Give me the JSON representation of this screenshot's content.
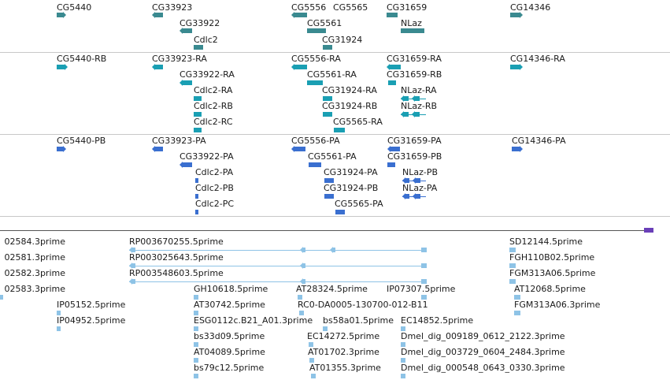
{
  "tracks": {
    "genes": {
      "labels": [
        "CG5440",
        "CG33923",
        "CG33922",
        "Cdlc2",
        "CG5556",
        "CG5565",
        "CG5561",
        "CG31924",
        "CG31659",
        "NLaz",
        "CG14346"
      ]
    },
    "transcripts": {
      "labels": [
        "CG5440-RB",
        "CG33923-RA",
        "CG33922-RA",
        "Cdlc2-RA",
        "Cdlc2-RB",
        "Cdlc2-RC",
        "CG5556-RA",
        "CG5561-RA",
        "CG31924-RA",
        "CG31924-RB",
        "CG5565-RA",
        "CG31659-RA",
        "CG31659-RB",
        "NLaz-RA",
        "NLaz-RB",
        "CG14346-RA"
      ]
    },
    "proteins": {
      "labels": [
        "CG5440-PB",
        "CG33923-PA",
        "CG33922-PA",
        "Cdlc2-PA",
        "Cdlc2-PB",
        "Cdlc2-PC",
        "CG5556-PA",
        "CG5561-PA",
        "CG31924-PA",
        "CG31924-PB",
        "CG5565-PA",
        "CG31659-PA",
        "CG31659-PB",
        "NLaz-PB",
        "NLaz-PA",
        "CG14346-PA"
      ]
    },
    "ests": {
      "labels": [
        "02584.3prime",
        "02581.3prime",
        "02582.3prime",
        "02583.3prime",
        "IP05152.5prime",
        "IP04952.5prime",
        "RP003670255.5prime",
        "RP003025643.5prime",
        "RP003548603.5prime",
        "GH10618.5prime",
        "AT30742.5prime",
        "ESG0112c.B21_A01.3prime",
        "bs33d09.5prime",
        "AT04089.5prime",
        "bs79c12.5prime",
        "AT28324.5prime",
        "RC0-DA0005-130700-012-B11",
        "bs58a01.5prime",
        "EC14272.5prime",
        "AT01702.3prime",
        "AT01355.3prime",
        "IP07307.5prime",
        "EC14852.5prime",
        "Dmel_dig_009189_0612_2122.3prime",
        "Dmel_dig_003729_0604_2484.3prime",
        "Dmel_dig_000548_0643_0330.3prime",
        "SD12144.5prime",
        "FGH110B02.5prime",
        "FGM313A06.5prime",
        "AT12068.5prime",
        "FGM313A06.3prime"
      ]
    }
  },
  "colors": {
    "gene": "#3a8a90",
    "transcript": "#1a9fb3",
    "protein": "#3a6fd0",
    "est": "#8ec3e6",
    "scale_end": "#6a3fb8"
  }
}
